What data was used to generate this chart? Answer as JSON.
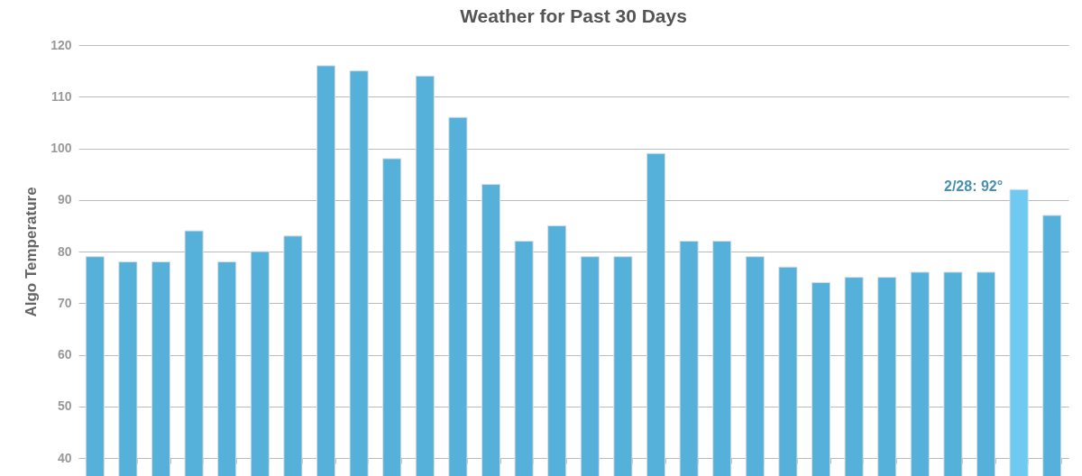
{
  "chart_data": {
    "type": "bar",
    "title": "Weather for Past 30 Days",
    "ylabel": "Algo Temperature",
    "categories": [
      null,
      null,
      null,
      null,
      null,
      null,
      null,
      null,
      null,
      null,
      null,
      null,
      null,
      null,
      null,
      null,
      null,
      null,
      null,
      null,
      null,
      null,
      null,
      null,
      null,
      null,
      null,
      null,
      null,
      null
    ],
    "values": [
      79,
      78,
      78,
      84,
      78,
      80,
      83,
      116,
      115,
      98,
      114,
      106,
      93,
      82,
      85,
      79,
      79,
      99,
      82,
      82,
      79,
      77,
      74,
      75,
      75,
      76,
      76,
      76,
      92,
      87
    ],
    "colors": [
      "#55b1d9",
      "#55b1d9",
      "#55b1d9",
      "#55b1d9",
      "#55b1d9",
      "#55b1d9",
      "#55b1d9",
      "#55b1d9",
      "#55b1d9",
      "#55b1d9",
      "#55b1d9",
      "#55b1d9",
      "#55b1d9",
      "#55b1d9",
      "#55b1d9",
      "#55b1d9",
      "#55b1d9",
      "#55b1d9",
      "#55b1d9",
      "#55b1d9",
      "#55b1d9",
      "#55b1d9",
      "#55b1d9",
      "#55b1d9",
      "#55b1d9",
      "#55b1d9",
      "#55b1d9",
      "#55b1d9",
      "#6ecaf0",
      "#55b1d9"
    ],
    "ylim": [
      40,
      120
    ],
    "yticks": [
      40,
      50,
      60,
      70,
      80,
      90,
      100,
      110,
      120
    ],
    "grid": "y",
    "annotations": [
      "2/28: 92°"
    ]
  }
}
